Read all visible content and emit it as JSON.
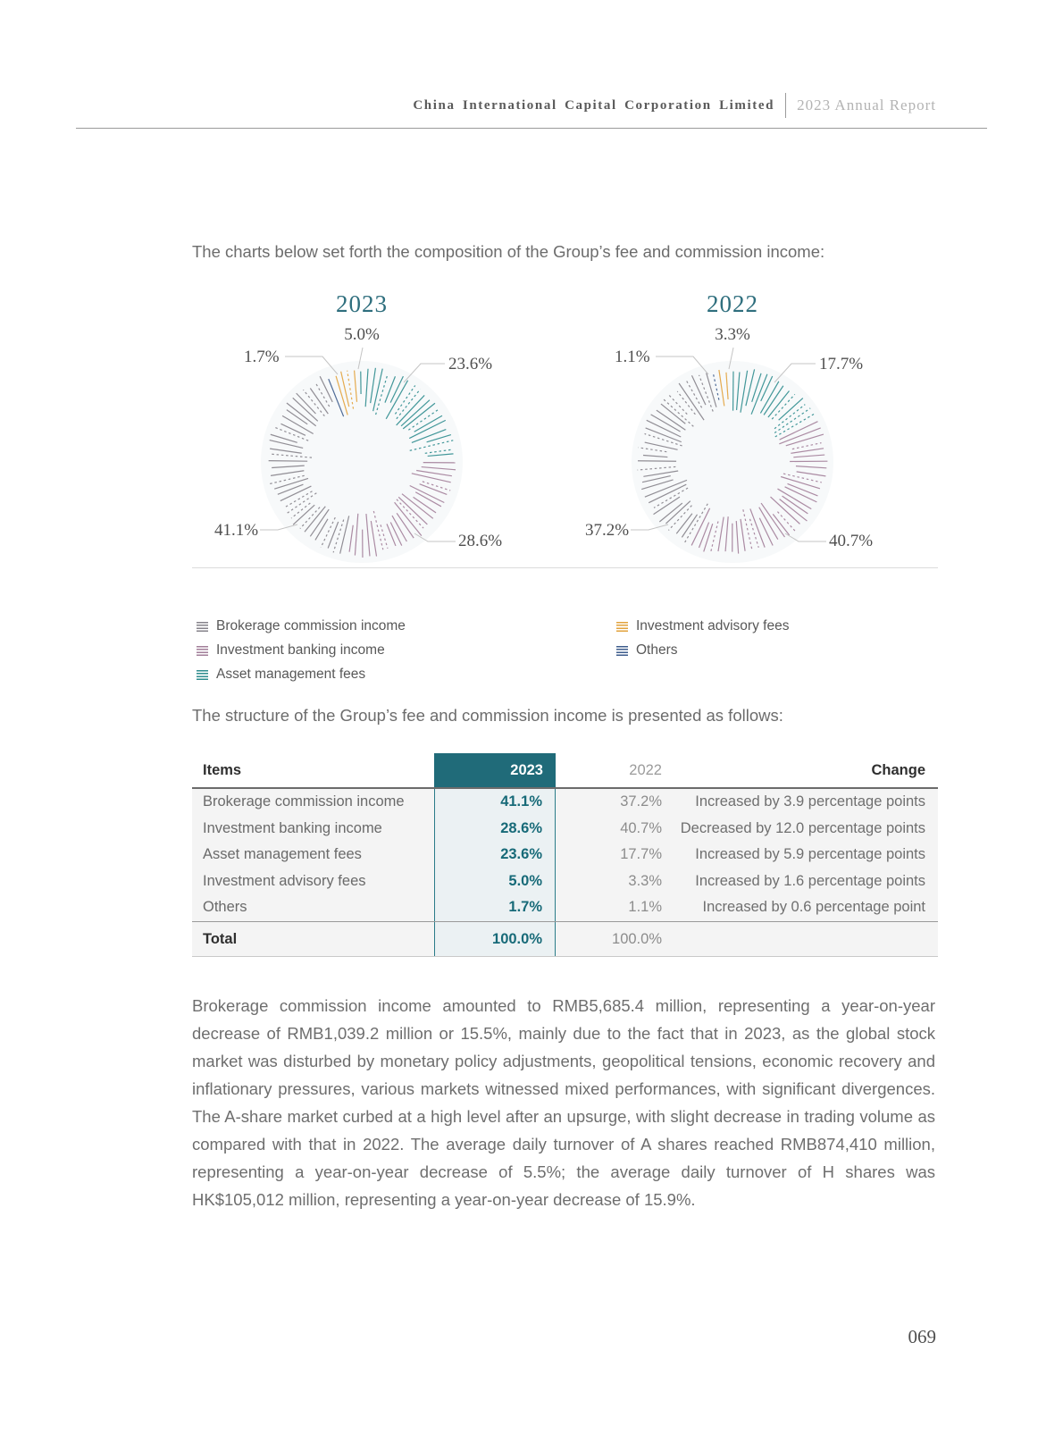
{
  "header": {
    "company": "China International Capital Corporation Limited",
    "report": "2023 Annual Report"
  },
  "intro_charts": "The charts below set forth the composition of the Group’s fee and commission income:",
  "intro_table": "The structure of the Group’s fee and commission income is presented as follows:",
  "colors": {
    "accent_teal": "#206b79",
    "brokerage": "#85828A",
    "investment_banking": "#A27E99",
    "asset_management": "#2E8C8E",
    "investment_advisory": "#E2A23C",
    "others": "#3D5C8C"
  },
  "chart_data": [
    {
      "type": "pie",
      "title": "2023",
      "unit": "%",
      "segments": [
        {
          "name": "Asset management fees",
          "value": 23.6,
          "color": "#2E8C8E"
        },
        {
          "name": "Investment banking income",
          "value": 28.6,
          "color": "#A27E99"
        },
        {
          "name": "Brokerage commission income",
          "value": 41.1,
          "color": "#85828A"
        },
        {
          "name": "Others",
          "value": 1.7,
          "color": "#3D5C8C"
        },
        {
          "name": "Investment advisory fees",
          "value": 5.0,
          "color": "#E2A23C"
        }
      ],
      "labels": {
        "top": "5.0%",
        "upper_left": "1.7%",
        "right": "23.6%",
        "lower_left": "41.1%",
        "lower_right": "28.6%"
      }
    },
    {
      "type": "pie",
      "title": "2022",
      "unit": "%",
      "segments": [
        {
          "name": "Asset management fees",
          "value": 17.7,
          "color": "#2E8C8E"
        },
        {
          "name": "Investment banking income",
          "value": 40.7,
          "color": "#A27E99"
        },
        {
          "name": "Brokerage commission income",
          "value": 37.2,
          "color": "#85828A"
        },
        {
          "name": "Others",
          "value": 1.1,
          "color": "#3D5C8C"
        },
        {
          "name": "Investment advisory fees",
          "value": 3.3,
          "color": "#E2A23C"
        }
      ],
      "labels": {
        "top": "3.3%",
        "upper_left": "1.1%",
        "right": "17.7%",
        "lower_left": "37.2%",
        "lower_right": "40.7%"
      }
    }
  ],
  "legend": {
    "items": [
      {
        "label": "Brokerage commission income",
        "color": "#85828A"
      },
      {
        "label": "Investment banking income",
        "color": "#A27E99"
      },
      {
        "label": "Asset management fees",
        "color": "#2E8C8E"
      },
      {
        "label": "Investment advisory fees",
        "color": "#E2A23C"
      },
      {
        "label": "Others",
        "color": "#3D5C8C"
      }
    ]
  },
  "table": {
    "columns": [
      "Items",
      "2023",
      "2022",
      "Change"
    ],
    "rows": [
      {
        "item": "Brokerage commission income",
        "y2023": "41.1%",
        "y2022": "37.2%",
        "change": "Increased by 3.9 percentage points"
      },
      {
        "item": "Investment banking income",
        "y2023": "28.6%",
        "y2022": "40.7%",
        "change": "Decreased by 12.0 percentage points"
      },
      {
        "item": "Asset management fees",
        "y2023": "23.6%",
        "y2022": "17.7%",
        "change": "Increased by 5.9 percentage points"
      },
      {
        "item": "Investment advisory fees",
        "y2023": "5.0%",
        "y2022": "3.3%",
        "change": "Increased by 1.6 percentage points"
      },
      {
        "item": "Others",
        "y2023": "1.7%",
        "y2022": "1.1%",
        "change": "Increased by 0.6 percentage point"
      }
    ],
    "total": {
      "item": "Total",
      "y2023": "100.0%",
      "y2022": "100.0%",
      "change": ""
    }
  },
  "body_paragraph": "Brokerage commission income amounted to RMB5,685.4 million, representing a year-on-year decrease of RMB1,039.2 million or 15.5%, mainly due to the fact that in 2023, as the global stock market was disturbed by monetary policy adjustments, geopolitical tensions, economic recovery and inflationary pressures, various markets witnessed mixed performances, with significant divergences. The A-share market curbed at a high level after an upsurge, with slight decrease in trading volume as compared with that in 2022. The average daily turnover of A shares reached RMB874,410 million, representing a year-on-year decrease of 5.5%; the average daily turnover of H shares was HK$105,012 million, representing a year-on-year decrease of 15.9%.",
  "page": {
    "number": "069"
  }
}
